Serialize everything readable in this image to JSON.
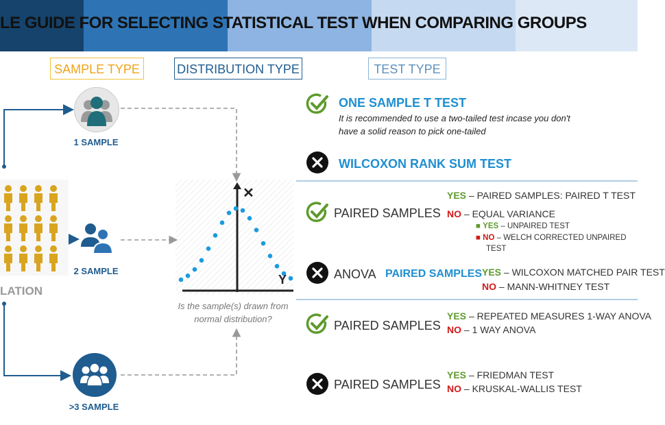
{
  "header": {
    "title": "LE GUIDE FOR SELECTING STATISTICAL TEST WHEN COMPARING GROUPS",
    "banner_colors": [
      "#16436b",
      "#2e74b5",
      "#8db4e2",
      "#c5d9f1",
      "#dce8f6"
    ]
  },
  "columns": {
    "sample_type": "SAMPLE TYPE",
    "distribution_type": "DISTRIBUTION  TYPE",
    "test_type": "TEST  TYPE"
  },
  "population_label": "LATION",
  "samples": {
    "one": "1 SAMPLE",
    "two": "2 SAMPLE",
    "three": ">3 SAMPLE"
  },
  "distribution": {
    "question": "Is the sample(s) drawn from normal distribution?",
    "marks": {
      "no": "✕",
      "yes": "Y"
    }
  },
  "one_sample": {
    "normal_test": "ONE SAMPLE T TEST",
    "note": "It is recommended to use a two-tailed test incase you don't have a solid reason to pick one-tailed",
    "non_normal_test": "WILCOXON RANK SUM TEST"
  },
  "two_sample": {
    "normal": {
      "label": "PAIRED SAMPLES",
      "yes_tag": "YES",
      "yes_text": " – PAIRED SAMPLES: PAIRED T TEST",
      "no_tag": "NO",
      "no_text": " – EQUAL VARIANCE",
      "sub_yes_tag": "YES",
      "sub_yes_text": " – UNPAIRED TEST",
      "sub_no_tag": "NO",
      "sub_no_text": " – WELCH CORRECTED UNPAIRED",
      "sub_no_text2": "TEST"
    },
    "non_normal": {
      "label": "ANOVA",
      "question": "PAIRED SAMPLES",
      "yes_tag": "YES",
      "yes_text": " – WILCOXON MATCHED PAIR TEST",
      "no_tag": "NO",
      "no_text": " – MANN-WHITNEY TEST"
    }
  },
  "three_sample": {
    "normal": {
      "label": "PAIRED SAMPLES",
      "yes_tag": "YES",
      "yes_text": " – REPEATED MEASURES 1-WAY ANOVA",
      "no_tag": "NO",
      "no_text": " – 1 WAY ANOVA"
    },
    "non_normal": {
      "label": "PAIRED SAMPLES",
      "yes_tag": "YES",
      "yes_text": " – FRIEDMAN TEST",
      "no_tag": "NO",
      "no_text": " – KRUSKAL-WALLIS TEST"
    }
  },
  "colors": {
    "sample_box": "#f0c23b",
    "distribution_box": "#1f5c8f",
    "test_box": "#8ab4d6",
    "check": "#5e9a2c",
    "cross": "#111111",
    "accent_blue": "#1f8fd1",
    "dot_blue": "#1a9be0",
    "population": "#d9a520"
  },
  "icons": {
    "one_sample": "group-of-three-icon",
    "two_sample": "two-people-icon",
    "three_sample": "crowd-icon",
    "valid": "check-circle-icon",
    "invalid": "cross-circle-icon"
  }
}
